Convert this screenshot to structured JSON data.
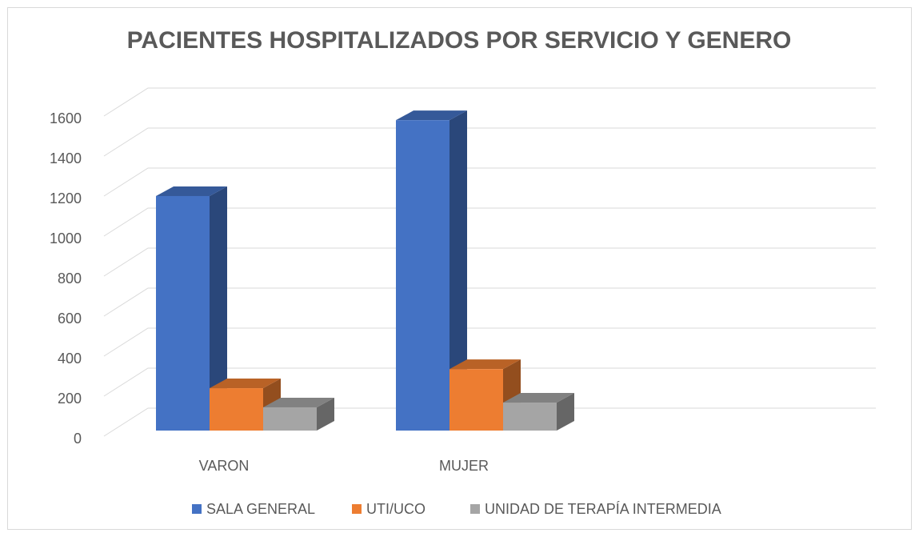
{
  "chart_data": {
    "type": "bar3d",
    "title": "PACIENTES HOSPITALIZADOS POR SERVICIO Y GENERO",
    "categories": [
      "VARON",
      "MUJER",
      null
    ],
    "series": [
      {
        "name": "SALA GENERAL",
        "color": "#4472c4",
        "values": [
          1190,
          1575,
          null
        ]
      },
      {
        "name": "UTI/UCO",
        "color": "#ed7d31",
        "values": [
          215,
          312,
          null
        ]
      },
      {
        "name": "UNIDAD DE TERAPÍA INTERMEDIA",
        "color": "#a5a5a5",
        "values": [
          118,
          142,
          null
        ]
      }
    ],
    "ylim": [
      0,
      1600
    ],
    "yticks": [
      0,
      200,
      400,
      600,
      800,
      1000,
      1200,
      1400,
      1600
    ],
    "grid": true,
    "legend": "bottom"
  }
}
